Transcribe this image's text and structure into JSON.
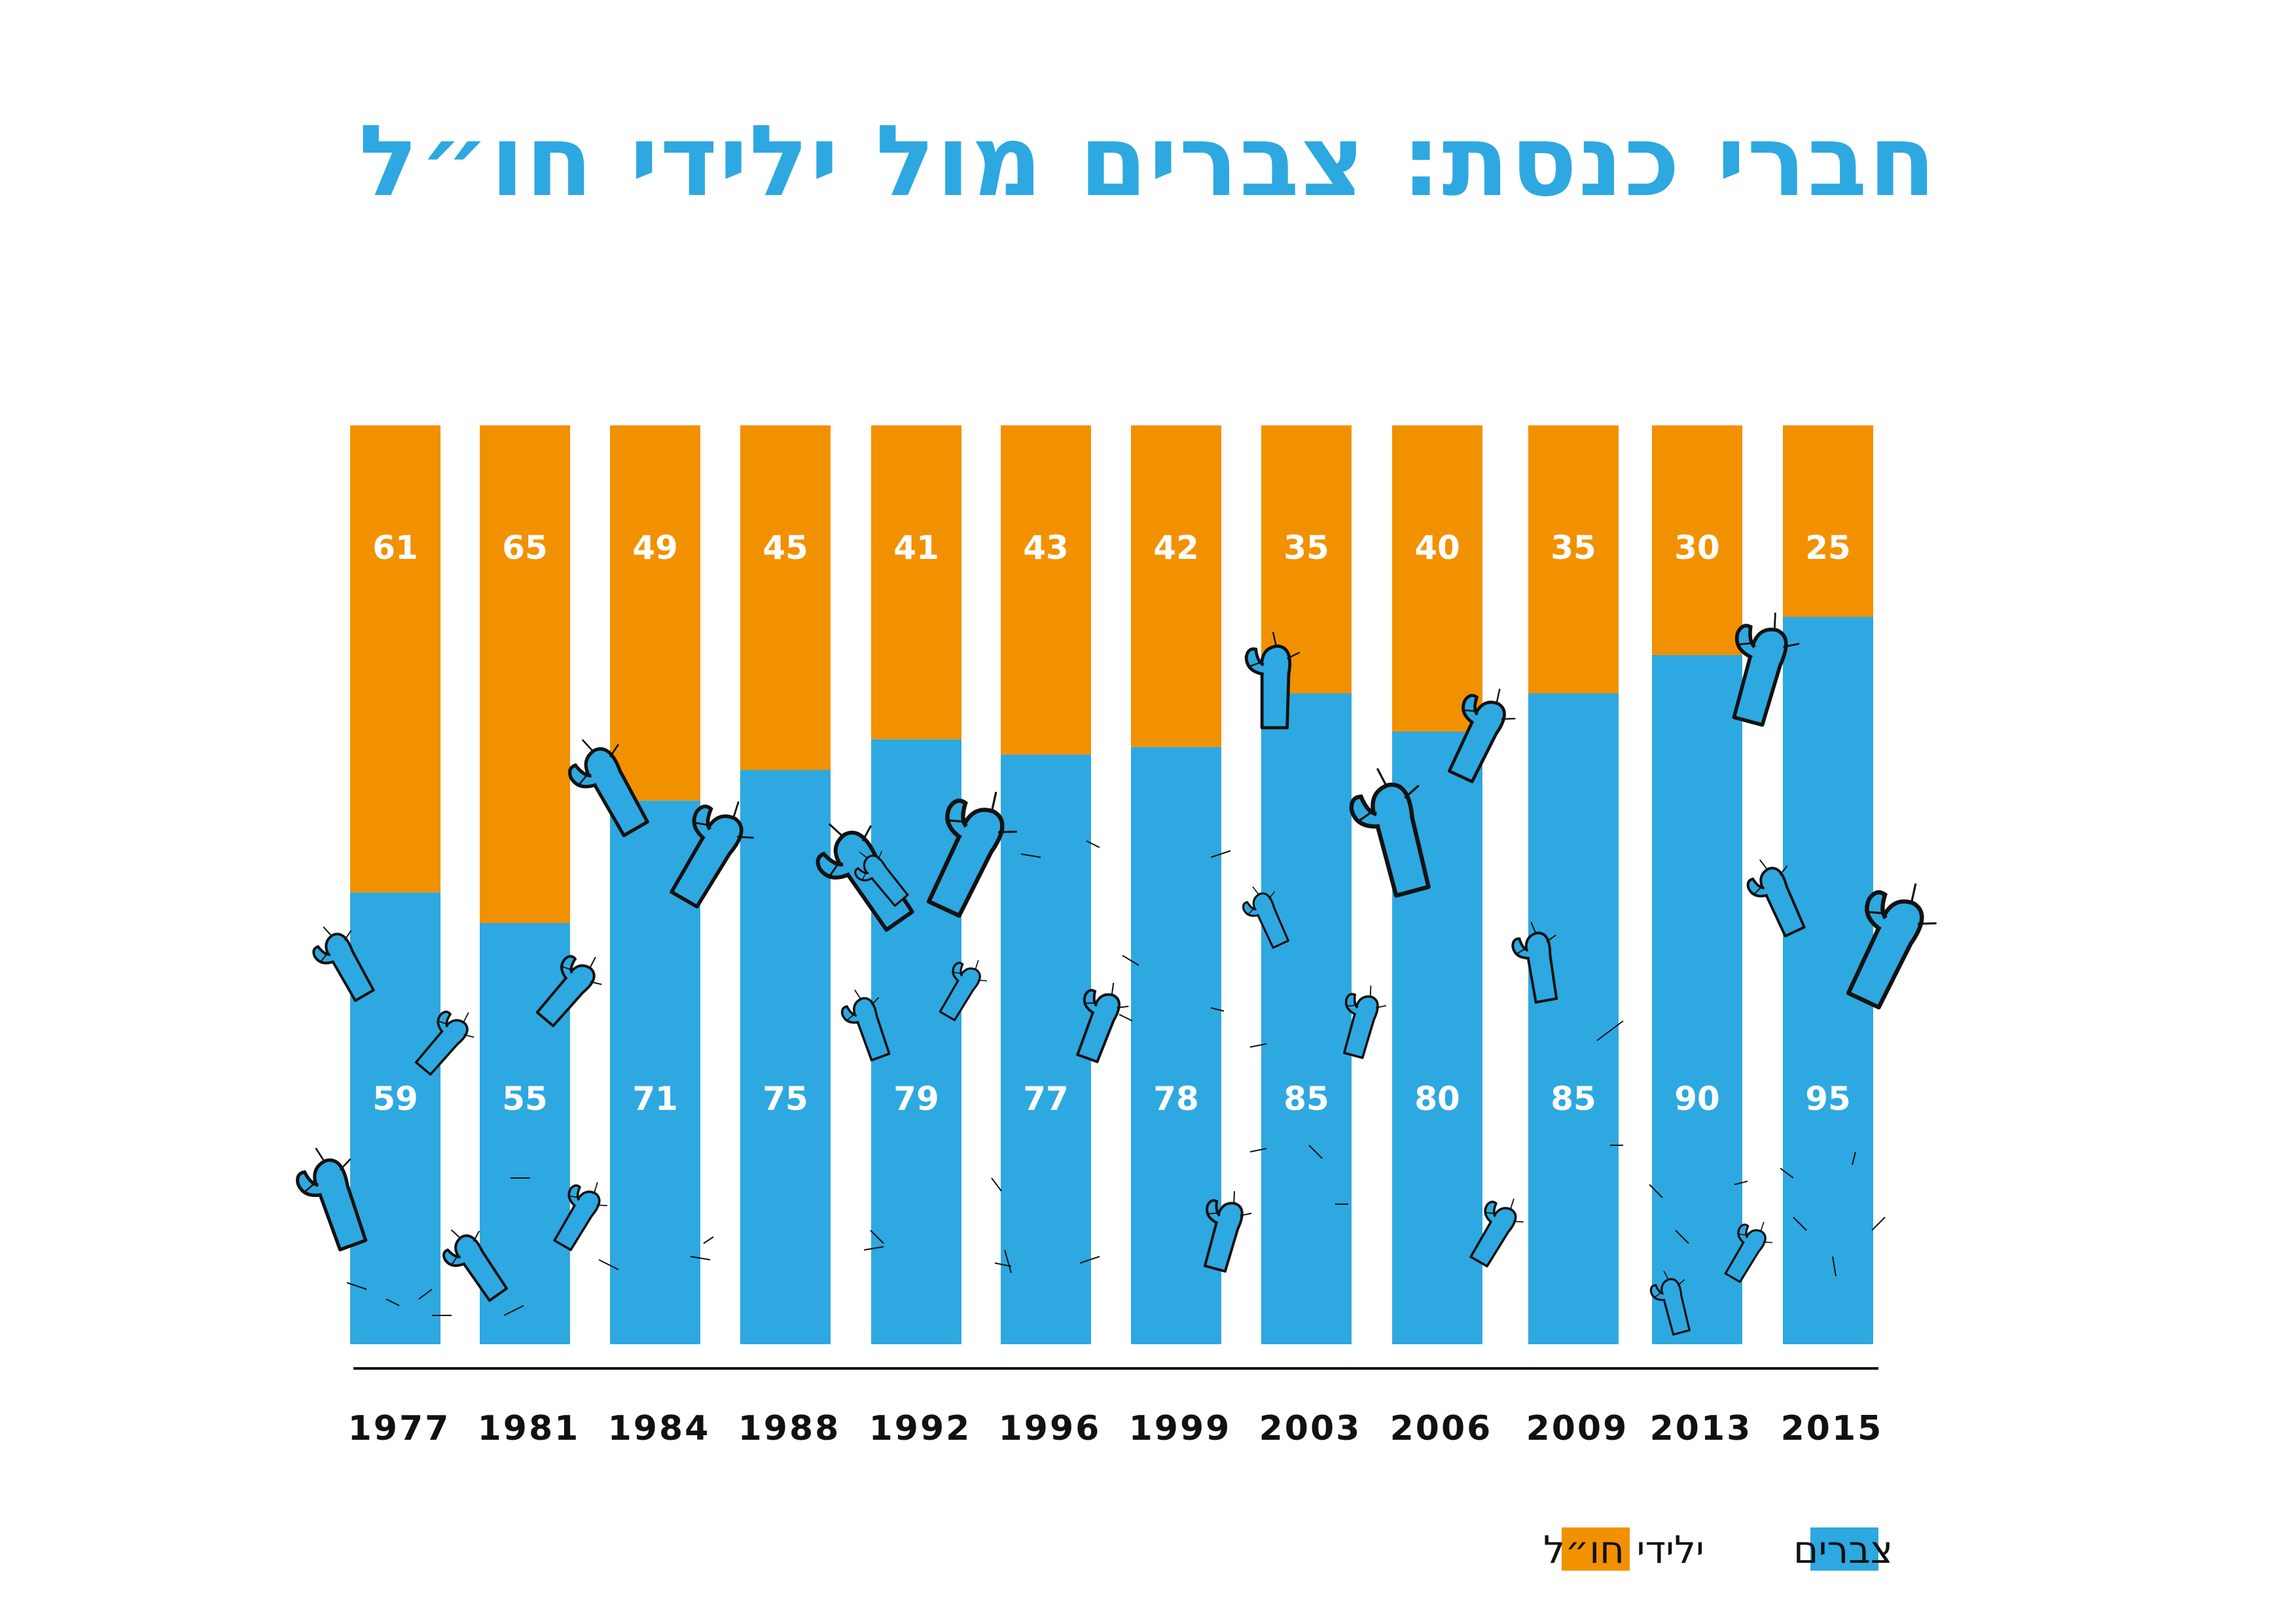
{
  "chart_data": {
    "type": "bar",
    "stacked": true,
    "title": "חברי כנסת: צברים מול ילידי חו״ל",
    "categories": [
      "1977",
      "1981",
      "1984",
      "1988",
      "1992",
      "1996",
      "1999",
      "2003",
      "2006",
      "2009",
      "2013",
      "2015"
    ],
    "series": [
      {
        "name": "צברים",
        "color": "#2ea8e0",
        "values": [
          59,
          55,
          71,
          75,
          79,
          77,
          78,
          85,
          80,
          85,
          90,
          95
        ]
      },
      {
        "name": "ילידי חו״ל",
        "color": "#f29100",
        "values": [
          61,
          65,
          49,
          45,
          41,
          43,
          42,
          35,
          40,
          35,
          30,
          25
        ]
      }
    ],
    "ylim": [
      0,
      120
    ],
    "xlabel": "",
    "ylabel": "",
    "grid": false,
    "legend": "bottom-right"
  }
}
